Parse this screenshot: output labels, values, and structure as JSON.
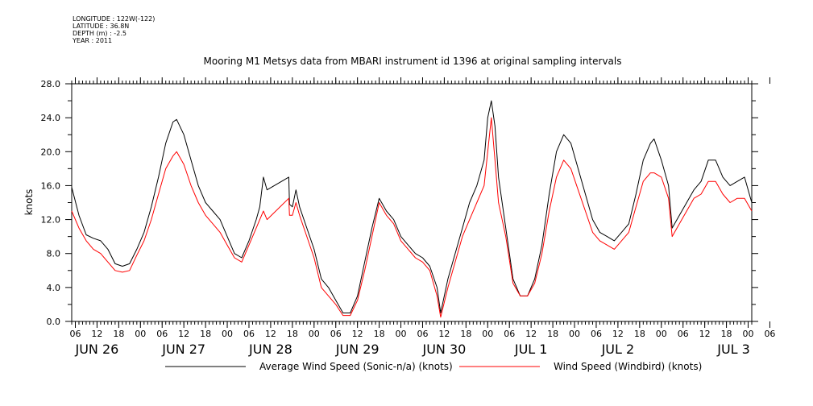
{
  "metadata": [
    "LONGITUDE : 122W(-122)",
    "LATITUDE : 36.8N",
    "DEPTH (m) : -2.5",
    "YEAR : 2011"
  ],
  "chart_data": {
    "type": "line",
    "title": "Mooring M1 Metsys data from MBARI instrument id 1396 at original sampling intervals",
    "ylabel": "knots",
    "ylim": [
      0,
      28
    ],
    "xlim_hours": [
      0,
      188
    ],
    "yticks": [
      "0.0",
      "4.0",
      "8.0",
      "12.0",
      "16.0",
      "20.0",
      "24.0",
      "28.0"
    ],
    "xtick_hours": [
      "06",
      "12",
      "18",
      "00",
      "06",
      "12",
      "18",
      "00",
      "06",
      "12",
      "18",
      "00",
      "06",
      "12",
      "18",
      "00",
      "06",
      "12",
      "18",
      "00",
      "06",
      "12",
      "18",
      "00",
      "06",
      "12",
      "18",
      "00",
      "06",
      "12",
      "18",
      "00",
      "06"
    ],
    "date_labels": [
      "JUN 26",
      "JUN 27",
      "JUN 28",
      "JUN 29",
      "JUN 30",
      "JUL  1",
      "JUL  2",
      "JUL  3"
    ],
    "x_unit": "hours since JUN 26 05:00",
    "series": [
      {
        "name": "Average Wind Speed (Sonic-n/a) (knots)",
        "color": "#000000",
        "points": [
          [
            0,
            15.8
          ],
          [
            2,
            12.5
          ],
          [
            4,
            10.2
          ],
          [
            6,
            9.8
          ],
          [
            8,
            9.5
          ],
          [
            10,
            8.5
          ],
          [
            12,
            6.8
          ],
          [
            14,
            6.5
          ],
          [
            16,
            6.8
          ],
          [
            18,
            8.5
          ],
          [
            20,
            10.5
          ],
          [
            22,
            13.5
          ],
          [
            24,
            17
          ],
          [
            26,
            21
          ],
          [
            28,
            23.5
          ],
          [
            29,
            23.8
          ],
          [
            31,
            22
          ],
          [
            33,
            19
          ],
          [
            35,
            16
          ],
          [
            37,
            14
          ],
          [
            39,
            13
          ],
          [
            41,
            12
          ],
          [
            43,
            10
          ],
          [
            45,
            8
          ],
          [
            47,
            7.5
          ],
          [
            49,
            9.5
          ],
          [
            51,
            12
          ],
          [
            52,
            13.5
          ],
          [
            53,
            17
          ],
          [
            54,
            15.5
          ],
          [
            60,
            17
          ],
          [
            60.2,
            13.8
          ],
          [
            61,
            13.5
          ],
          [
            62,
            15.5
          ],
          [
            63,
            13.5
          ],
          [
            65,
            11
          ],
          [
            67,
            8.5
          ],
          [
            69,
            5
          ],
          [
            71,
            4
          ],
          [
            73,
            2.5
          ],
          [
            75,
            1
          ],
          [
            77,
            1
          ],
          [
            79,
            3
          ],
          [
            81,
            7
          ],
          [
            83,
            11
          ],
          [
            85,
            14.5
          ],
          [
            87,
            13
          ],
          [
            89,
            12
          ],
          [
            91,
            10
          ],
          [
            93,
            9
          ],
          [
            95,
            8
          ],
          [
            97,
            7.5
          ],
          [
            99,
            6.5
          ],
          [
            101,
            4
          ],
          [
            102,
            1
          ],
          [
            104,
            5
          ],
          [
            106,
            8
          ],
          [
            108,
            11
          ],
          [
            110,
            14
          ],
          [
            112,
            16
          ],
          [
            114,
            19
          ],
          [
            115,
            24
          ],
          [
            116,
            26
          ],
          [
            117,
            23
          ],
          [
            118,
            17
          ],
          [
            120,
            11
          ],
          [
            122,
            5
          ],
          [
            124,
            3
          ],
          [
            126,
            3
          ],
          [
            128,
            5
          ],
          [
            130,
            9
          ],
          [
            132,
            15
          ],
          [
            134,
            20
          ],
          [
            136,
            22
          ],
          [
            138,
            21
          ],
          [
            140,
            18
          ],
          [
            142,
            15
          ],
          [
            144,
            12
          ],
          [
            146,
            10.5
          ],
          [
            148,
            10
          ],
          [
            150,
            9.5
          ],
          [
            152,
            10.5
          ],
          [
            154,
            11.5
          ],
          [
            156,
            15
          ],
          [
            158,
            19
          ],
          [
            160,
            21
          ],
          [
            161,
            21.5
          ],
          [
            163,
            19
          ],
          [
            165,
            16
          ],
          [
            166,
            11
          ],
          [
            168,
            12.5
          ],
          [
            170,
            14
          ],
          [
            172,
            15.5
          ],
          [
            174,
            16.5
          ],
          [
            176,
            19
          ],
          [
            178,
            19
          ],
          [
            180,
            17
          ],
          [
            182,
            16
          ],
          [
            184,
            16.5
          ],
          [
            186,
            17
          ],
          [
            188,
            14
          ]
        ]
      },
      {
        "name": "Wind Speed (Windbird) (knots)",
        "color": "#ff0000",
        "points": [
          [
            0,
            13
          ],
          [
            2,
            11
          ],
          [
            4,
            9.5
          ],
          [
            6,
            8.5
          ],
          [
            8,
            8
          ],
          [
            10,
            7
          ],
          [
            12,
            6
          ],
          [
            14,
            5.8
          ],
          [
            16,
            6
          ],
          [
            18,
            7.8
          ],
          [
            20,
            9.5
          ],
          [
            22,
            12
          ],
          [
            24,
            15
          ],
          [
            26,
            18
          ],
          [
            28,
            19.5
          ],
          [
            29,
            20
          ],
          [
            31,
            18.5
          ],
          [
            33,
            16
          ],
          [
            35,
            14
          ],
          [
            37,
            12.5
          ],
          [
            39,
            11.5
          ],
          [
            41,
            10.5
          ],
          [
            43,
            9
          ],
          [
            45,
            7.5
          ],
          [
            47,
            7
          ],
          [
            49,
            9
          ],
          [
            51,
            11
          ],
          [
            52,
            12
          ],
          [
            53,
            13
          ],
          [
            54,
            12
          ],
          [
            60,
            14.5
          ],
          [
            60.2,
            12.5
          ],
          [
            61,
            12.5
          ],
          [
            62,
            14
          ],
          [
            63,
            12.5
          ],
          [
            65,
            10
          ],
          [
            67,
            7.5
          ],
          [
            69,
            4
          ],
          [
            71,
            3
          ],
          [
            73,
            2
          ],
          [
            75,
            0.7
          ],
          [
            77,
            0.7
          ],
          [
            79,
            2.5
          ],
          [
            81,
            6
          ],
          [
            83,
            10
          ],
          [
            85,
            14
          ],
          [
            87,
            12.5
          ],
          [
            89,
            11.5
          ],
          [
            91,
            9.5
          ],
          [
            93,
            8.5
          ],
          [
            95,
            7.5
          ],
          [
            97,
            7
          ],
          [
            99,
            6
          ],
          [
            101,
            3
          ],
          [
            102,
            0.5
          ],
          [
            104,
            4
          ],
          [
            106,
            7
          ],
          [
            108,
            10
          ],
          [
            110,
            12
          ],
          [
            112,
            14
          ],
          [
            114,
            16
          ],
          [
            115,
            20
          ],
          [
            116,
            24
          ],
          [
            117,
            19
          ],
          [
            118,
            14
          ],
          [
            120,
            10
          ],
          [
            122,
            4.5
          ],
          [
            124,
            3
          ],
          [
            126,
            3
          ],
          [
            128,
            4.5
          ],
          [
            130,
            8
          ],
          [
            132,
            13
          ],
          [
            134,
            17
          ],
          [
            136,
            19
          ],
          [
            138,
            18
          ],
          [
            140,
            15.5
          ],
          [
            142,
            13
          ],
          [
            144,
            10.5
          ],
          [
            146,
            9.5
          ],
          [
            148,
            9
          ],
          [
            150,
            8.5
          ],
          [
            152,
            9.5
          ],
          [
            154,
            10.5
          ],
          [
            156,
            13.5
          ],
          [
            158,
            16.5
          ],
          [
            160,
            17.5
          ],
          [
            161,
            17.5
          ],
          [
            163,
            17
          ],
          [
            165,
            14.5
          ],
          [
            166,
            10
          ],
          [
            168,
            11.5
          ],
          [
            170,
            13
          ],
          [
            172,
            14.5
          ],
          [
            174,
            15
          ],
          [
            176,
            16.5
          ],
          [
            178,
            16.5
          ],
          [
            180,
            15
          ],
          [
            182,
            14
          ],
          [
            184,
            14.5
          ],
          [
            186,
            14.5
          ],
          [
            188,
            13
          ]
        ]
      }
    ],
    "legend_placement": "bottom",
    "grid": false
  }
}
